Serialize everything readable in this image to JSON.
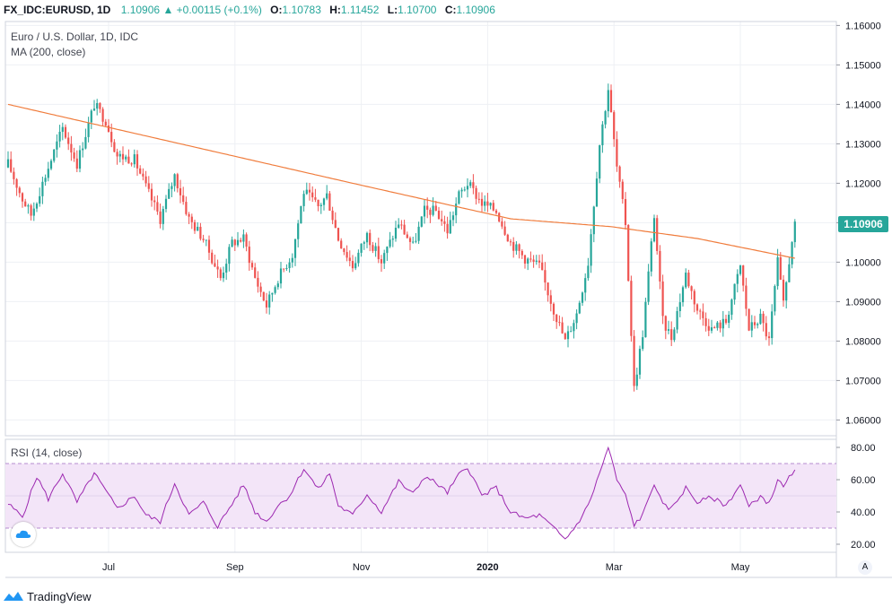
{
  "header": {
    "symbol": "FX_IDC:EURUSD, 1D",
    "last": "1.10906",
    "change": "▲ +0.00115 (+0.1%)",
    "o_label": "O:",
    "o": "1.10783",
    "h_label": "H:",
    "h": "1.11452",
    "l_label": "L:",
    "l": "1.10700",
    "c_label": "C:",
    "c": "1.10906"
  },
  "legend": {
    "title": "Euro / U.S. Dollar, 1D, IDC",
    "ma": "MA (200, close)",
    "rsi": "RSI (14, close)"
  },
  "price_tag": "1.10906",
  "auto_button": "A",
  "footer": {
    "brand": "TradingView"
  },
  "colors": {
    "up": "#26a69a",
    "down": "#ef5350",
    "ma": "#f07c3c",
    "rsi_line": "#9c27b0",
    "rsi_band": "#f3e5f8"
  },
  "chart_data": {
    "type": "candlestick",
    "price_axis": {
      "ticks": [
        "1.16000",
        "1.15000",
        "1.14000",
        "1.13000",
        "1.12000",
        "1.11000",
        "1.10000",
        "1.09000",
        "1.08000",
        "1.07000",
        "1.06000"
      ],
      "ylim": [
        1.056,
        1.161
      ]
    },
    "rsi_axis": {
      "ticks": [
        "80.00",
        "60.00",
        "40.00",
        "20.00"
      ],
      "ylim": [
        15,
        85
      ],
      "band": [
        30,
        70
      ]
    },
    "x_labels": [
      "Jul",
      "Sep",
      "Nov",
      "2020",
      "Mar",
      "May"
    ],
    "anchors": [
      [
        0,
        1.125
      ],
      [
        5,
        1.116
      ],
      [
        8,
        1.112
      ],
      [
        14,
        1.124
      ],
      [
        19,
        1.134
      ],
      [
        24,
        1.125
      ],
      [
        30,
        1.14
      ],
      [
        34,
        1.136
      ],
      [
        38,
        1.127
      ],
      [
        44,
        1.126
      ],
      [
        48,
        1.119
      ],
      [
        53,
        1.111
      ],
      [
        58,
        1.122
      ],
      [
        63,
        1.111
      ],
      [
        68,
        1.106
      ],
      [
        74,
        1.096
      ],
      [
        78,
        1.105
      ],
      [
        82,
        1.106
      ],
      [
        86,
        1.096
      ],
      [
        90,
        1.089
      ],
      [
        94,
        1.096
      ],
      [
        99,
        1.102
      ],
      [
        103,
        1.118
      ],
      [
        108,
        1.114
      ],
      [
        111,
        1.117
      ],
      [
        115,
        1.106
      ],
      [
        120,
        1.099
      ],
      [
        125,
        1.107
      ],
      [
        130,
        1.1
      ],
      [
        136,
        1.11
      ],
      [
        141,
        1.104
      ],
      [
        145,
        1.113
      ],
      [
        149,
        1.113
      ],
      [
        153,
        1.108
      ],
      [
        157,
        1.117
      ],
      [
        160,
        1.12
      ],
      [
        165,
        1.115
      ],
      [
        170,
        1.113
      ],
      [
        175,
        1.105
      ],
      [
        180,
        1.101
      ],
      [
        185,
        1.099
      ],
      [
        190,
        1.088
      ],
      [
        194,
        1.08
      ],
      [
        198,
        1.087
      ],
      [
        202,
        1.1
      ],
      [
        206,
        1.13
      ],
      [
        209,
        1.144
      ],
      [
        212,
        1.124
      ],
      [
        215,
        1.11
      ],
      [
        218,
        1.068
      ],
      [
        221,
        1.082
      ],
      [
        225,
        1.112
      ],
      [
        228,
        1.085
      ],
      [
        231,
        1.081
      ],
      [
        236,
        1.097
      ],
      [
        240,
        1.088
      ],
      [
        245,
        1.083
      ],
      [
        250,
        1.085
      ],
      [
        255,
        1.099
      ],
      [
        258,
        1.083
      ],
      [
        262,
        1.086
      ],
      [
        265,
        1.08
      ],
      [
        268,
        1.1
      ],
      [
        270,
        1.089
      ],
      [
        273,
        1.106
      ],
      [
        274,
        1.109
      ]
    ],
    "ma_200": [
      [
        0,
        1.14
      ],
      [
        60,
        1.13
      ],
      [
        120,
        1.12
      ],
      [
        175,
        1.111
      ],
      [
        210,
        1.109
      ],
      [
        240,
        1.106
      ],
      [
        274,
        1.101
      ]
    ],
    "rsi": [
      [
        0,
        45
      ],
      [
        5,
        37
      ],
      [
        10,
        62
      ],
      [
        14,
        48
      ],
      [
        19,
        64
      ],
      [
        24,
        46
      ],
      [
        30,
        64
      ],
      [
        38,
        42
      ],
      [
        44,
        50
      ],
      [
        48,
        38
      ],
      [
        53,
        34
      ],
      [
        58,
        58
      ],
      [
        63,
        38
      ],
      [
        68,
        46
      ],
      [
        73,
        31
      ],
      [
        78,
        45
      ],
      [
        82,
        57
      ],
      [
        86,
        40
      ],
      [
        90,
        34
      ],
      [
        94,
        44
      ],
      [
        98,
        50
      ],
      [
        103,
        67
      ],
      [
        108,
        54
      ],
      [
        112,
        64
      ],
      [
        115,
        44
      ],
      [
        120,
        38
      ],
      [
        125,
        51
      ],
      [
        130,
        40
      ],
      [
        136,
        59
      ],
      [
        141,
        51
      ],
      [
        145,
        62
      ],
      [
        149,
        58
      ],
      [
        153,
        52
      ],
      [
        157,
        63
      ],
      [
        160,
        68
      ],
      [
        165,
        50
      ],
      [
        170,
        55
      ],
      [
        175,
        40
      ],
      [
        180,
        36
      ],
      [
        185,
        38
      ],
      [
        190,
        30
      ],
      [
        194,
        23
      ],
      [
        198,
        32
      ],
      [
        202,
        44
      ],
      [
        206,
        64
      ],
      [
        209,
        80
      ],
      [
        212,
        60
      ],
      [
        215,
        50
      ],
      [
        218,
        32
      ],
      [
        221,
        38
      ],
      [
        225,
        58
      ],
      [
        228,
        44
      ],
      [
        231,
        42
      ],
      [
        236,
        55
      ],
      [
        240,
        46
      ],
      [
        245,
        49
      ],
      [
        250,
        44
      ],
      [
        255,
        57
      ],
      [
        258,
        43
      ],
      [
        262,
        50
      ],
      [
        265,
        45
      ],
      [
        268,
        60
      ],
      [
        270,
        55
      ],
      [
        273,
        64
      ],
      [
        274,
        65
      ]
    ]
  }
}
